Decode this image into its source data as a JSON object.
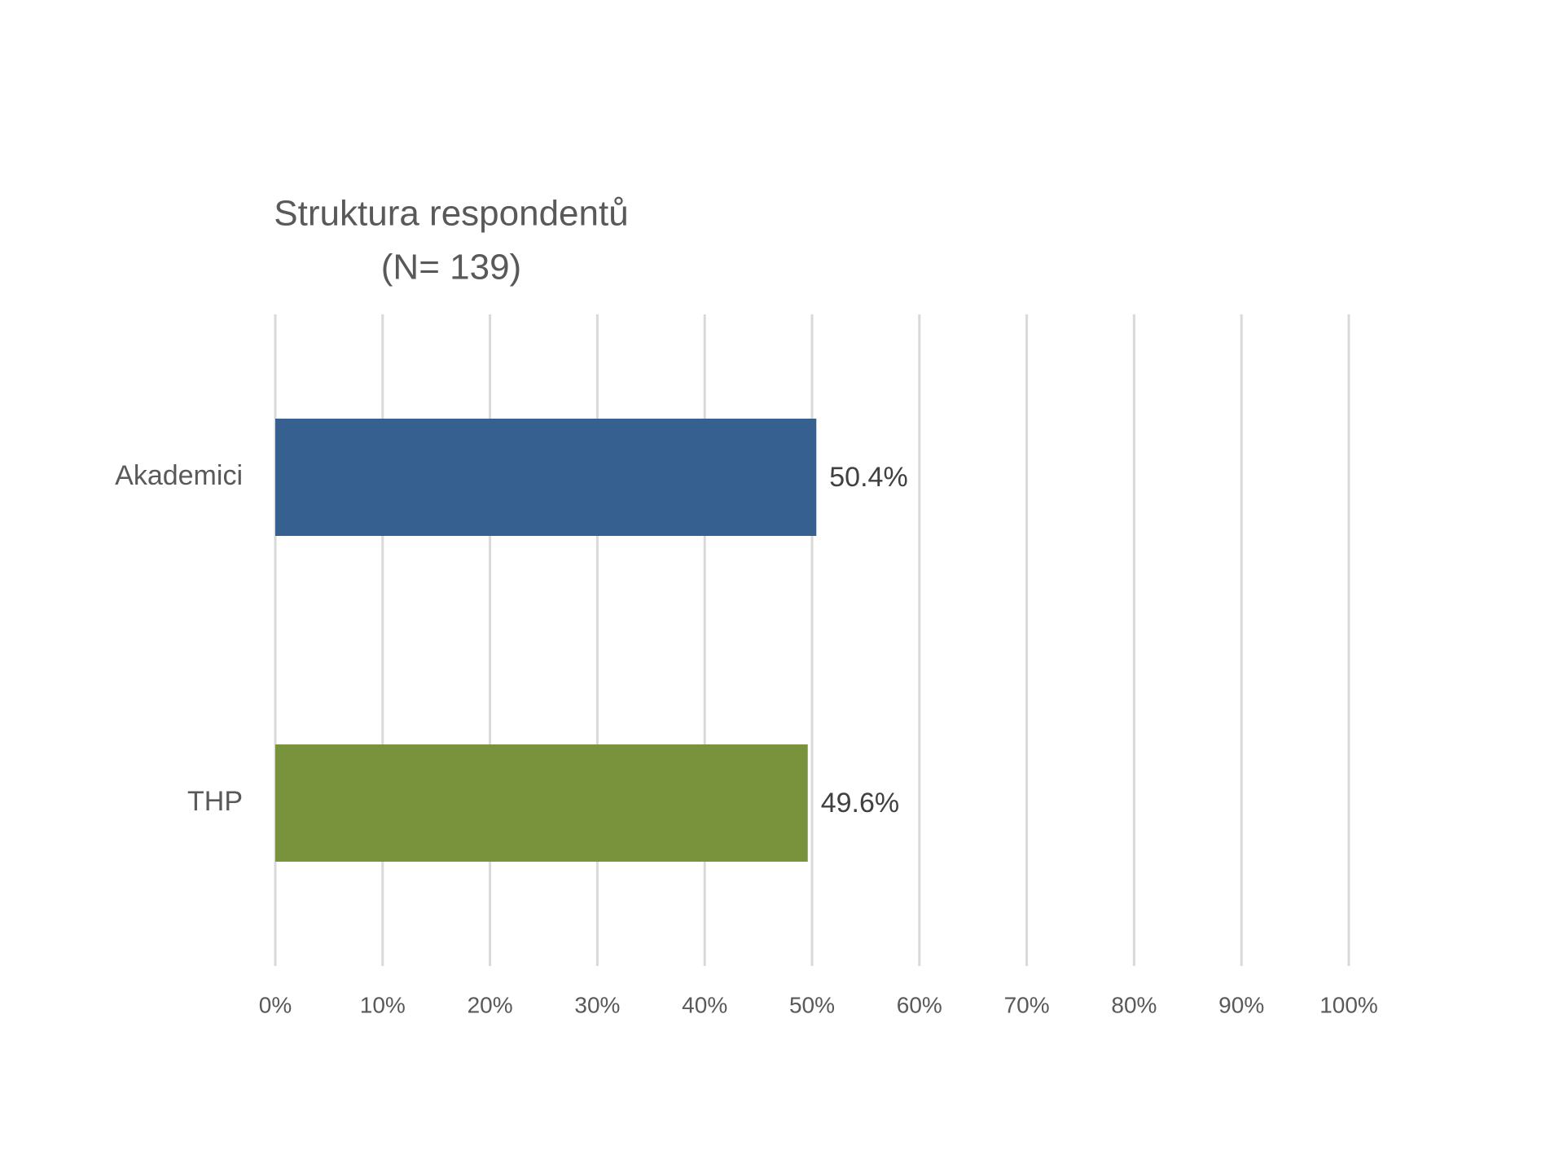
{
  "chart_data": {
    "type": "hbar",
    "title": "Struktura respondentů",
    "subtitle": "(N= 139)",
    "categories": [
      "Akademici",
      "THP"
    ],
    "values": [
      50.4,
      49.6
    ],
    "value_labels": [
      "50.4%",
      "49.6%"
    ],
    "colors": [
      "#36608f",
      "#78933c"
    ],
    "xlim": [
      0,
      100
    ],
    "xticks": [
      {
        "value": 0,
        "label": "0%"
      },
      {
        "value": 10,
        "label": "10%"
      },
      {
        "value": 20,
        "label": "20%"
      },
      {
        "value": 30,
        "label": "30%"
      },
      {
        "value": 40,
        "label": "40%"
      },
      {
        "value": 50,
        "label": "50%"
      },
      {
        "value": 60,
        "label": "60%"
      },
      {
        "value": 70,
        "label": "70%"
      },
      {
        "value": 80,
        "label": "80%"
      },
      {
        "value": 90,
        "label": "90%"
      },
      {
        "value": 100,
        "label": "100%"
      }
    ],
    "grid": true
  }
}
